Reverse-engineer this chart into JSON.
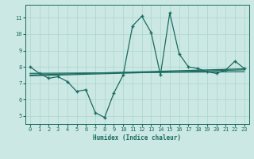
{
  "xlabel": "Humidex (Indice chaleur)",
  "bg_color": "#cce8e4",
  "grid_color": "#aad4cc",
  "line_color": "#1a6b60",
  "xlim": [
    -0.5,
    23.5
  ],
  "ylim": [
    4.5,
    11.8
  ],
  "yticks": [
    5,
    6,
    7,
    8,
    9,
    10,
    11
  ],
  "xticks": [
    0,
    1,
    2,
    3,
    4,
    5,
    6,
    7,
    8,
    9,
    10,
    11,
    12,
    13,
    14,
    15,
    16,
    17,
    18,
    19,
    20,
    21,
    22,
    23
  ],
  "main_x": [
    0,
    1,
    2,
    3,
    4,
    5,
    6,
    7,
    8,
    9,
    10,
    11,
    12,
    13,
    14,
    15,
    16,
    17,
    18,
    19,
    20,
    21,
    22,
    23
  ],
  "main_y": [
    8.0,
    7.6,
    7.3,
    7.4,
    7.1,
    6.5,
    6.6,
    5.2,
    4.9,
    6.4,
    7.5,
    10.5,
    11.1,
    10.1,
    7.5,
    11.3,
    8.8,
    8.0,
    7.9,
    7.7,
    7.6,
    7.8,
    8.35,
    7.9
  ],
  "trend1_x": [
    0,
    23
  ],
  "trend1_y": [
    7.6,
    7.7
  ],
  "trend2_x": [
    0,
    23
  ],
  "trend2_y": [
    7.45,
    7.82
  ],
  "trend3_x": [
    0,
    23
  ],
  "trend3_y": [
    7.5,
    7.88
  ]
}
